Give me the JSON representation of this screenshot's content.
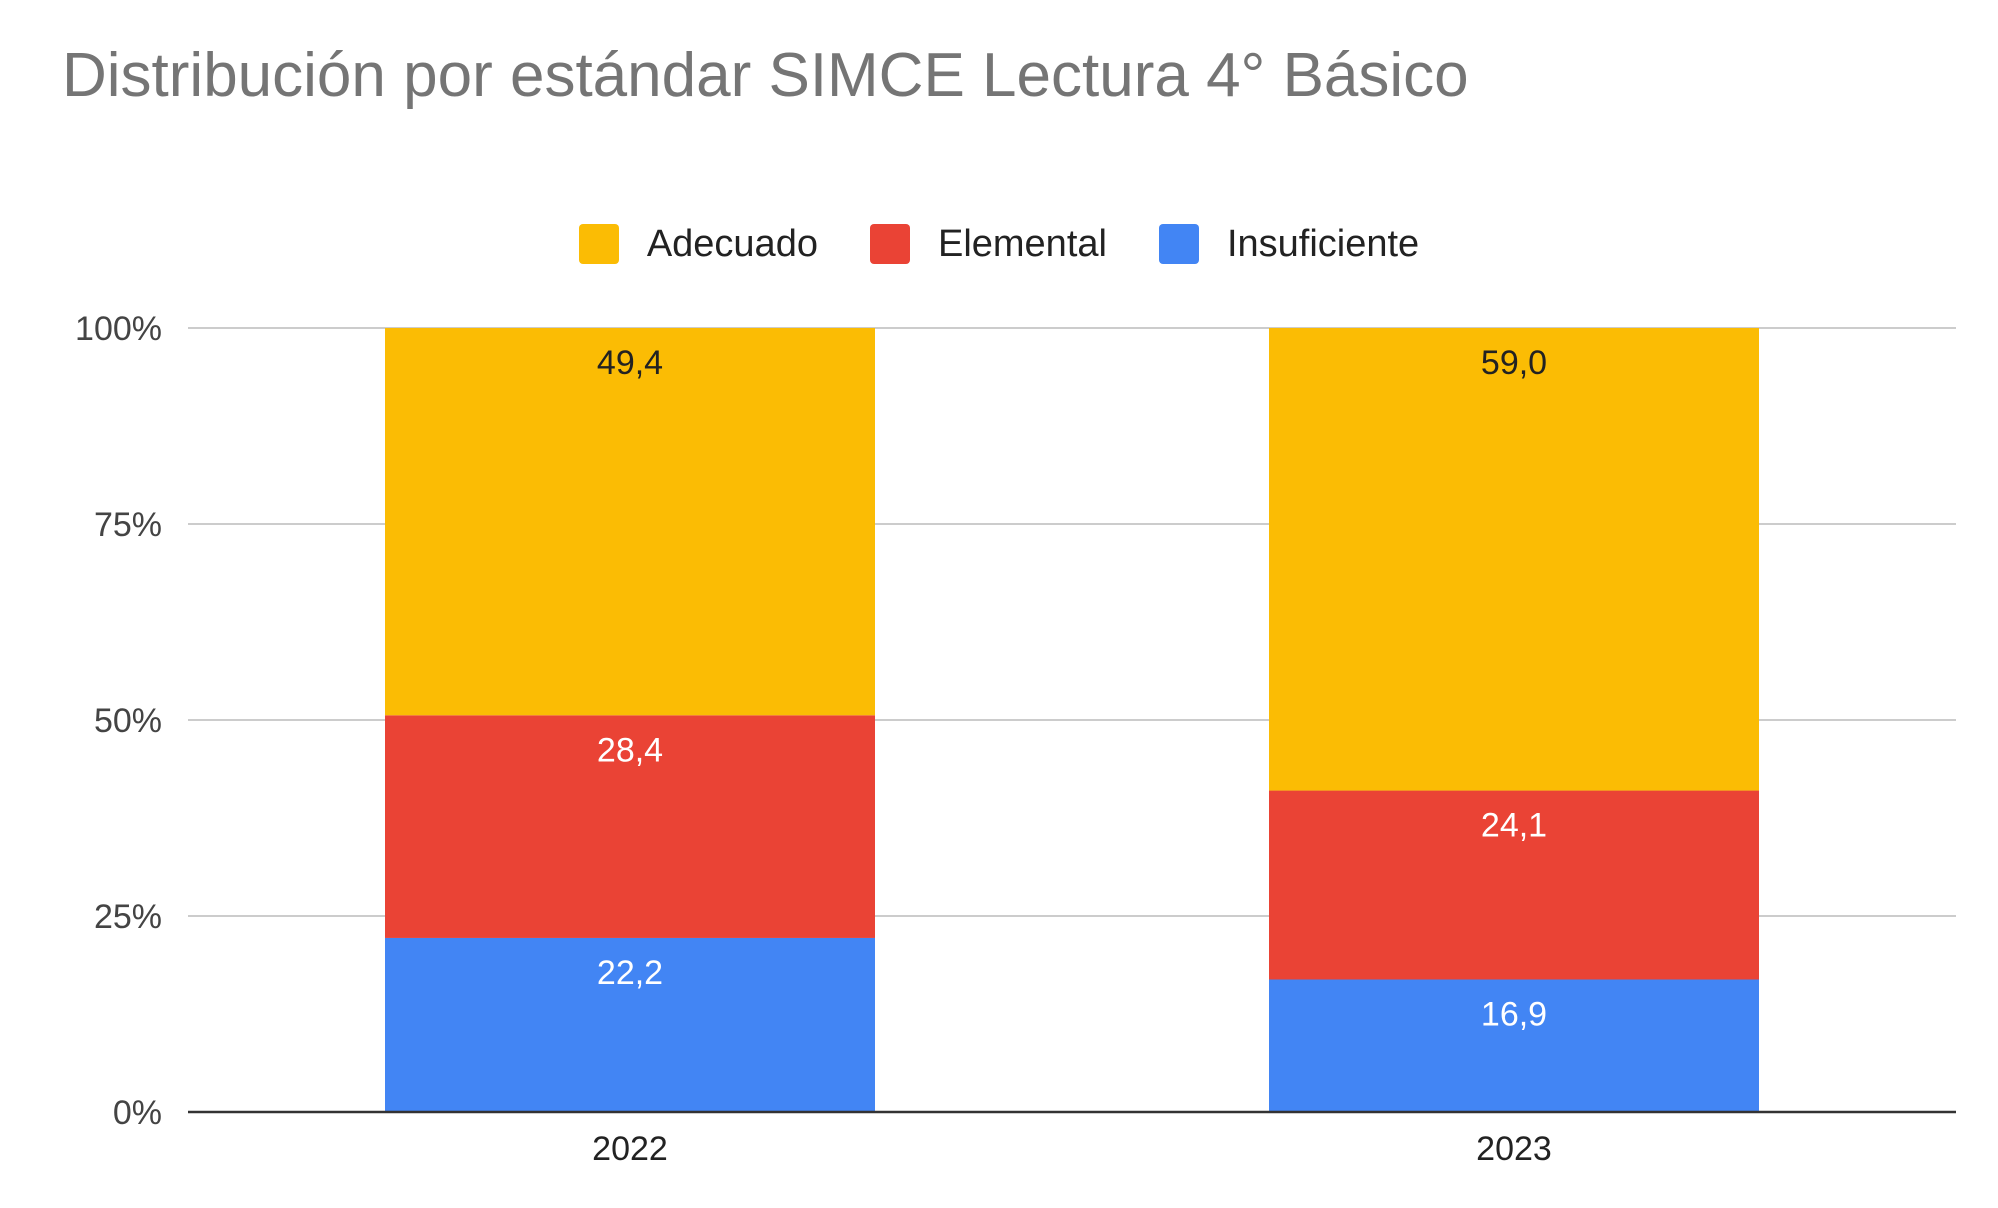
{
  "chart_data": {
    "type": "bar",
    "stacked": true,
    "normalized": true,
    "title": "Distribución por estándar SIMCE Lectura 4° Básico",
    "categories": [
      "2022",
      "2023"
    ],
    "series": [
      {
        "name": "Insuficiente",
        "values": [
          22.2,
          16.9
        ],
        "color": "#4285F4",
        "label_color": "#ffffff"
      },
      {
        "name": "Elemental",
        "values": [
          28.4,
          24.1
        ],
        "color": "#EA4335",
        "label_color": "#ffffff"
      },
      {
        "name": "Adecuado",
        "values": [
          49.4,
          59.0
        ],
        "color": "#FBBC04",
        "label_color": "#222222"
      }
    ],
    "data_labels": [
      [
        "22,2",
        "16,9"
      ],
      [
        "28,4",
        "24,1"
      ],
      [
        "49,4",
        "59,0"
      ]
    ],
    "legend_order": [
      "Adecuado",
      "Elemental",
      "Insuficiente"
    ],
    "y_ticks": [
      "0%",
      "25%",
      "50%",
      "75%",
      "100%"
    ],
    "ylim": [
      0,
      100
    ],
    "legend_position": "top",
    "grid": true
  }
}
